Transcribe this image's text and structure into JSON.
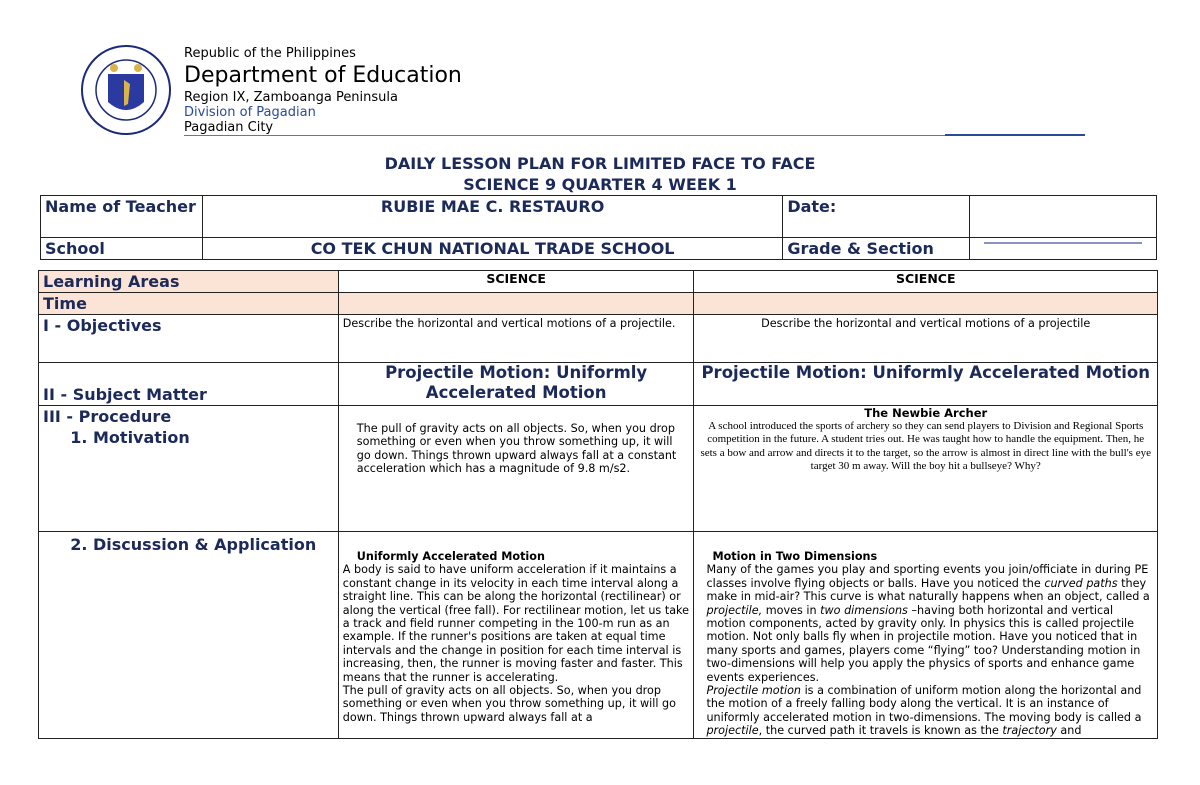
{
  "header": {
    "logo_text": "KAGAWARAN NG EDUKASYON · REPUBLIKA NG PILIPINAS",
    "republic": "Republic of the Philippines",
    "department": "Department of Education",
    "region": "Region IX, Zamboanga Peninsula",
    "division": "Division of Pagadian",
    "city": "Pagadian City"
  },
  "title": {
    "line1": "DAILY LESSON PLAN FOR LIMITED FACE TO FACE",
    "line2": "SCIENCE 9 QUARTER 4 WEEK 1"
  },
  "info": {
    "teacher_label": "Name of Teacher",
    "teacher": "RUBIE MAE C. RESTAURO",
    "date_label": "Date:",
    "date": "",
    "school_label": "School",
    "school": "CO TEK CHUN NATIONAL TRADE SCHOOL",
    "grade_label": "Grade & Section"
  },
  "plan": {
    "learning_areas_label": "Learning Areas",
    "area1": "SCIENCE",
    "area2": "SCIENCE",
    "time_label": "Time",
    "objectives_label": "I - Objectives",
    "objective1": "Describe the horizontal and vertical motions of a projectile.",
    "objective2": "Describe the horizontal and vertical motions of a projectile",
    "subject_label": "II - Subject Matter",
    "subject1": "Projectile Motion: Uniformly Accelerated Motion",
    "subject2": "Projectile Motion: Uniformly Accelerated Motion",
    "procedure_label": "III - Procedure",
    "motivation_label": "Motivation",
    "motivation1": "The pull of gravity acts on all objects. So, when you drop something or even when you throw something up, it will go down. Things thrown upward always fall at a constant acceleration which has a magnitude of 9.8 m/s2.",
    "motivation2_title": "The Newbie Archer",
    "motivation2": "A school introduced the sports of archery so they can send players to Division and Regional Sports competition in the future. A student tries out. He was taught how to handle the equipment. Then, he sets a bow and arrow and directs it to the target, so the arrow is almost in direct line with the bull's eye target 30 m away. Will the boy hit a bullseye? Why?",
    "discussion_label": "Discussion & Application",
    "discussion1_title": "Uniformly Accelerated Motion",
    "discussion1": "A body is said to have uniform acceleration if it maintains a constant change in its velocity in each time interval along a straight line. This can be along the horizontal (rectilinear) or along the vertical (free fall). For rectilinear motion, let us take a track and field runner competing in the 100-m run as an example. If the runner's positions are taken at equal time intervals and the change in position for each time interval is increasing, then, the runner is moving faster and faster. This means that the runner is accelerating.",
    "discussion1b": "The pull of gravity acts on all objects. So, when you drop something or even when you throw something up, it will go down. Things thrown upward always fall at a",
    "discussion2_title": "Motion in Two Dimensions",
    "discussion2": {
      "p1": "Many of the games you play and sporting events you join/officiate in during PE classes involve flying objects or balls. Have you noticed the ",
      "i1": "curved paths",
      "p2": " they make in mid-air? This curve is what naturally happens when an object, called a ",
      "i2": "projectile,",
      "p3": " moves in ",
      "i3": "two dimensions",
      "p4": " –having both horizontal and vertical motion components, acted by gravity only. In physics this is called projectile motion. Not only balls fly when in projectile motion. Have you noticed that in many sports and games, players come “flying” too? Understanding motion in two-dimensions will help you apply the physics of sports and enhance game events experiences.",
      "i4": "Projectile motion",
      "p5": " is a combination of uniform motion along the horizontal and the motion of a freely falling body along the vertical. It is an instance of uniformly accelerated motion in two-dimensions. The moving body is called a ",
      "i5": "projectile",
      "p6": ", the curved path it travels is known as the ",
      "i6": "trajectory",
      "p7": " and"
    }
  }
}
